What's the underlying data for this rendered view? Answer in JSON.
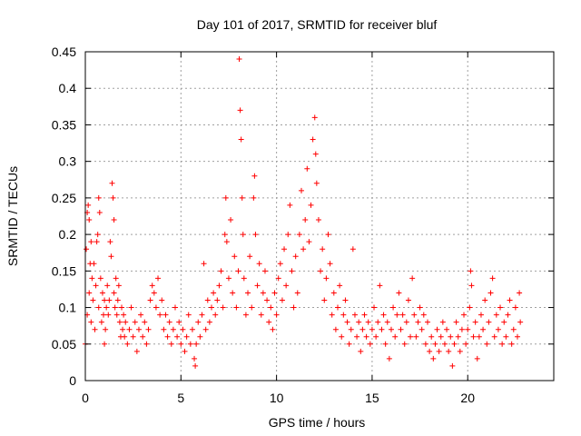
{
  "chart_data": {
    "type": "scatter",
    "title": "Day 101 of 2017, SRMTID for receiver bluf",
    "xlabel": "GPS time / hours",
    "ylabel": "SRMTID / TECUs",
    "xlim": [
      0,
      24.5
    ],
    "ylim": [
      0,
      0.45
    ],
    "x_ticks": [
      0,
      5,
      10,
      15,
      20
    ],
    "x_tick_labels": [
      "0",
      "5",
      "10",
      "15",
      "20"
    ],
    "y_ticks": [
      0,
      0.05,
      0.1,
      0.15,
      0.2,
      0.25,
      0.3,
      0.35,
      0.4,
      0.45
    ],
    "y_tick_labels": [
      "0",
      "0.05",
      "0.1",
      "0.15",
      "0.2",
      "0.25",
      "0.3",
      "0.35",
      "0.4",
      "0.45"
    ],
    "grid": true,
    "marker": "plus",
    "color": "#ff0000",
    "series": [
      {
        "name": "SRMTID",
        "points": [
          [
            0.0,
            0.05
          ],
          [
            0.05,
            0.18
          ],
          [
            0.1,
            0.23
          ],
          [
            0.1,
            0.09
          ],
          [
            0.15,
            0.24
          ],
          [
            0.2,
            0.22
          ],
          [
            0.2,
            0.12
          ],
          [
            0.25,
            0.16
          ],
          [
            0.3,
            0.08
          ],
          [
            0.3,
            0.19
          ],
          [
            0.35,
            0.14
          ],
          [
            0.4,
            0.11
          ],
          [
            0.45,
            0.16
          ],
          [
            0.5,
            0.07
          ],
          [
            0.55,
            0.13
          ],
          [
            0.6,
            0.19
          ],
          [
            0.65,
            0.2
          ],
          [
            0.7,
            0.25
          ],
          [
            0.7,
            0.1
          ],
          [
            0.75,
            0.23
          ],
          [
            0.8,
            0.14
          ],
          [
            0.85,
            0.08
          ],
          [
            0.9,
            0.12
          ],
          [
            0.95,
            0.09
          ],
          [
            1.0,
            0.05
          ],
          [
            1.0,
            0.11
          ],
          [
            1.05,
            0.07
          ],
          [
            1.1,
            0.1
          ],
          [
            1.15,
            0.13
          ],
          [
            1.2,
            0.09
          ],
          [
            1.25,
            0.11
          ],
          [
            1.3,
            0.19
          ],
          [
            1.35,
            0.17
          ],
          [
            1.4,
            0.27
          ],
          [
            1.45,
            0.25
          ],
          [
            1.5,
            0.22
          ],
          [
            1.5,
            0.12
          ],
          [
            1.55,
            0.1
          ],
          [
            1.6,
            0.14
          ],
          [
            1.65,
            0.09
          ],
          [
            1.7,
            0.11
          ],
          [
            1.75,
            0.13
          ],
          [
            1.8,
            0.08
          ],
          [
            1.85,
            0.06
          ],
          [
            1.9,
            0.1
          ],
          [
            1.95,
            0.07
          ],
          [
            2.0,
            0.09
          ],
          [
            2.05,
            0.06
          ],
          [
            2.1,
            0.08
          ],
          [
            2.2,
            0.05
          ],
          [
            2.3,
            0.07
          ],
          [
            2.4,
            0.1
          ],
          [
            2.5,
            0.06
          ],
          [
            2.6,
            0.08
          ],
          [
            2.7,
            0.04
          ],
          [
            2.8,
            0.07
          ],
          [
            2.9,
            0.09
          ],
          [
            3.0,
            0.06
          ],
          [
            3.1,
            0.08
          ],
          [
            3.2,
            0.05
          ],
          [
            3.3,
            0.07
          ],
          [
            3.4,
            0.11
          ],
          [
            3.5,
            0.13
          ],
          [
            3.6,
            0.12
          ],
          [
            3.7,
            0.1
          ],
          [
            3.8,
            0.14
          ],
          [
            3.9,
            0.09
          ],
          [
            4.0,
            0.11
          ],
          [
            4.1,
            0.07
          ],
          [
            4.2,
            0.09
          ],
          [
            4.3,
            0.06
          ],
          [
            4.4,
            0.08
          ],
          [
            4.5,
            0.05
          ],
          [
            4.6,
            0.07
          ],
          [
            4.7,
            0.1
          ],
          [
            4.8,
            0.06
          ],
          [
            4.9,
            0.08
          ],
          [
            5.0,
            0.05
          ],
          [
            5.1,
            0.07
          ],
          [
            5.2,
            0.04
          ],
          [
            5.3,
            0.06
          ],
          [
            5.4,
            0.09
          ],
          [
            5.5,
            0.05
          ],
          [
            5.6,
            0.07
          ],
          [
            5.7,
            0.03
          ],
          [
            5.75,
            0.02
          ],
          [
            5.8,
            0.05
          ],
          [
            5.9,
            0.08
          ],
          [
            6.0,
            0.06
          ],
          [
            6.1,
            0.09
          ],
          [
            6.2,
            0.16
          ],
          [
            6.3,
            0.07
          ],
          [
            6.4,
            0.11
          ],
          [
            6.5,
            0.08
          ],
          [
            6.6,
            0.1
          ],
          [
            6.7,
            0.12
          ],
          [
            6.8,
            0.09
          ],
          [
            6.9,
            0.11
          ],
          [
            7.0,
            0.13
          ],
          [
            7.1,
            0.15
          ],
          [
            7.2,
            0.1
          ],
          [
            7.3,
            0.2
          ],
          [
            7.35,
            0.25
          ],
          [
            7.4,
            0.19
          ],
          [
            7.5,
            0.14
          ],
          [
            7.6,
            0.22
          ],
          [
            7.7,
            0.12
          ],
          [
            7.8,
            0.17
          ],
          [
            7.9,
            0.1
          ],
          [
            8.0,
            0.15
          ],
          [
            8.05,
            0.44
          ],
          [
            8.1,
            0.37
          ],
          [
            8.15,
            0.33
          ],
          [
            8.2,
            0.25
          ],
          [
            8.25,
            0.2
          ],
          [
            8.3,
            0.14
          ],
          [
            8.4,
            0.09
          ],
          [
            8.5,
            0.12
          ],
          [
            8.6,
            0.17
          ],
          [
            8.7,
            0.1
          ],
          [
            8.8,
            0.25
          ],
          [
            8.85,
            0.28
          ],
          [
            8.9,
            0.2
          ],
          [
            9.0,
            0.13
          ],
          [
            9.1,
            0.16
          ],
          [
            9.2,
            0.09
          ],
          [
            9.3,
            0.12
          ],
          [
            9.4,
            0.15
          ],
          [
            9.5,
            0.11
          ],
          [
            9.6,
            0.08
          ],
          [
            9.7,
            0.1
          ],
          [
            9.8,
            0.07
          ],
          [
            9.9,
            0.12
          ],
          [
            10.0,
            0.09
          ],
          [
            10.1,
            0.14
          ],
          [
            10.2,
            0.16
          ],
          [
            10.3,
            0.11
          ],
          [
            10.4,
            0.18
          ],
          [
            10.5,
            0.13
          ],
          [
            10.6,
            0.2
          ],
          [
            10.7,
            0.24
          ],
          [
            10.8,
            0.15
          ],
          [
            10.9,
            0.1
          ],
          [
            11.0,
            0.17
          ],
          [
            11.1,
            0.12
          ],
          [
            11.2,
            0.2
          ],
          [
            11.3,
            0.26
          ],
          [
            11.4,
            0.18
          ],
          [
            11.5,
            0.22
          ],
          [
            11.6,
            0.29
          ],
          [
            11.7,
            0.19
          ],
          [
            11.8,
            0.24
          ],
          [
            11.9,
            0.33
          ],
          [
            12.0,
            0.36
          ],
          [
            12.05,
            0.31
          ],
          [
            12.1,
            0.27
          ],
          [
            12.2,
            0.22
          ],
          [
            12.3,
            0.15
          ],
          [
            12.4,
            0.18
          ],
          [
            12.5,
            0.11
          ],
          [
            12.6,
            0.14
          ],
          [
            12.7,
            0.2
          ],
          [
            12.8,
            0.16
          ],
          [
            12.9,
            0.09
          ],
          [
            13.0,
            0.12
          ],
          [
            13.1,
            0.07
          ],
          [
            13.2,
            0.1
          ],
          [
            13.3,
            0.13
          ],
          [
            13.4,
            0.06
          ],
          [
            13.5,
            0.09
          ],
          [
            13.6,
            0.11
          ],
          [
            13.7,
            0.08
          ],
          [
            13.8,
            0.05
          ],
          [
            13.9,
            0.07
          ],
          [
            14.0,
            0.18
          ],
          [
            14.1,
            0.09
          ],
          [
            14.2,
            0.06
          ],
          [
            14.3,
            0.08
          ],
          [
            14.4,
            0.04
          ],
          [
            14.5,
            0.07
          ],
          [
            14.6,
            0.09
          ],
          [
            14.7,
            0.06
          ],
          [
            14.8,
            0.08
          ],
          [
            14.9,
            0.05
          ],
          [
            15.0,
            0.07
          ],
          [
            15.1,
            0.1
          ],
          [
            15.2,
            0.06
          ],
          [
            15.3,
            0.08
          ],
          [
            15.4,
            0.13
          ],
          [
            15.5,
            0.07
          ],
          [
            15.6,
            0.09
          ],
          [
            15.7,
            0.05
          ],
          [
            15.8,
            0.08
          ],
          [
            15.9,
            0.03
          ],
          [
            16.0,
            0.07
          ],
          [
            16.1,
            0.1
          ],
          [
            16.2,
            0.06
          ],
          [
            16.3,
            0.09
          ],
          [
            16.4,
            0.12
          ],
          [
            16.5,
            0.07
          ],
          [
            16.6,
            0.09
          ],
          [
            16.7,
            0.05
          ],
          [
            16.8,
            0.08
          ],
          [
            16.9,
            0.11
          ],
          [
            17.0,
            0.06
          ],
          [
            17.1,
            0.14
          ],
          [
            17.2,
            0.09
          ],
          [
            17.3,
            0.06
          ],
          [
            17.4,
            0.08
          ],
          [
            17.5,
            0.1
          ],
          [
            17.6,
            0.07
          ],
          [
            17.7,
            0.09
          ],
          [
            17.8,
            0.05
          ],
          [
            17.9,
            0.08
          ],
          [
            18.0,
            0.04
          ],
          [
            18.1,
            0.06
          ],
          [
            18.2,
            0.03
          ],
          [
            18.3,
            0.05
          ],
          [
            18.4,
            0.07
          ],
          [
            18.5,
            0.04
          ],
          [
            18.6,
            0.06
          ],
          [
            18.7,
            0.08
          ],
          [
            18.8,
            0.05
          ],
          [
            18.9,
            0.07
          ],
          [
            19.0,
            0.04
          ],
          [
            19.1,
            0.06
          ],
          [
            19.2,
            0.02
          ],
          [
            19.3,
            0.05
          ],
          [
            19.4,
            0.08
          ],
          [
            19.5,
            0.06
          ],
          [
            19.6,
            0.04
          ],
          [
            19.7,
            0.07
          ],
          [
            19.8,
            0.09
          ],
          [
            19.9,
            0.05
          ],
          [
            20.0,
            0.07
          ],
          [
            20.1,
            0.1
          ],
          [
            20.15,
            0.15
          ],
          [
            20.2,
            0.13
          ],
          [
            20.3,
            0.06
          ],
          [
            20.4,
            0.08
          ],
          [
            20.5,
            0.03
          ],
          [
            20.6,
            0.06
          ],
          [
            20.7,
            0.09
          ],
          [
            20.8,
            0.07
          ],
          [
            20.9,
            0.11
          ],
          [
            21.0,
            0.05
          ],
          [
            21.1,
            0.08
          ],
          [
            21.2,
            0.12
          ],
          [
            21.3,
            0.14
          ],
          [
            21.4,
            0.06
          ],
          [
            21.5,
            0.09
          ],
          [
            21.6,
            0.07
          ],
          [
            21.7,
            0.1
          ],
          [
            21.8,
            0.05
          ],
          [
            21.9,
            0.08
          ],
          [
            22.0,
            0.06
          ],
          [
            22.1,
            0.09
          ],
          [
            22.2,
            0.11
          ],
          [
            22.3,
            0.05
          ],
          [
            22.4,
            0.07
          ],
          [
            22.5,
            0.1
          ],
          [
            22.6,
            0.06
          ],
          [
            22.7,
            0.12
          ],
          [
            22.75,
            0.08
          ]
        ]
      }
    ]
  }
}
